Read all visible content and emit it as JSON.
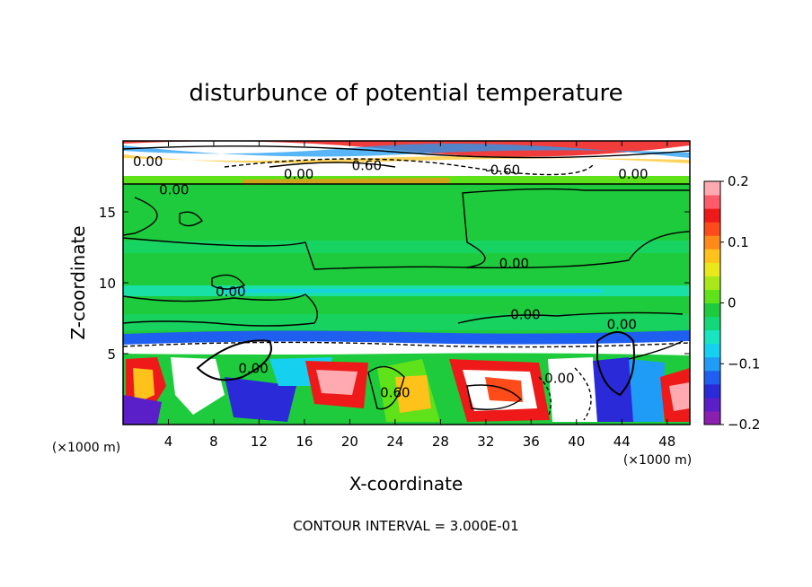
{
  "chart_data": {
    "type": "heatmap",
    "title": "disturbunce of potential temperature",
    "xlabel": "X-coordinate",
    "ylabel": "Z-coordinate",
    "x_unit": "(×1000 m)",
    "y_unit": "(×1000 m)",
    "xlim": [
      0,
      50
    ],
    "ylim": [
      0,
      20
    ],
    "x_ticks": [
      "4",
      "8",
      "12",
      "16",
      "20",
      "24",
      "28",
      "32",
      "36",
      "40",
      "44",
      "48"
    ],
    "y_ticks": [
      "5",
      "10",
      "15"
    ],
    "colorbar": {
      "range": [
        -0.2,
        0.2
      ],
      "tick_labels": [
        "0.2",
        "0.1",
        "0",
        "−0.1",
        "−0.2"
      ],
      "colors": [
        "#8b1fb0",
        "#5a1fc8",
        "#2a2ad8",
        "#1f5ff0",
        "#1f9cf5",
        "#16d0f0",
        "#18e6c0",
        "#12d87a",
        "#1ecb3c",
        "#5fe21a",
        "#a8e818",
        "#e8e81a",
        "#ffc21a",
        "#ff8a1a",
        "#ff4a1a",
        "#ee1a1a",
        "#ff5a6a",
        "#ffaab0"
      ]
    },
    "contour_labels": [
      {
        "text": "0.00",
        "x": 2.2,
        "y": 18.3
      },
      {
        "text": "0.00",
        "x": 15.5,
        "y": 17.4
      },
      {
        "text": "0.60",
        "x": 21.5,
        "y": 18.0
      },
      {
        "text": "-0.60",
        "x": 33.5,
        "y": 17.7
      },
      {
        "text": "0.00",
        "x": 45.0,
        "y": 17.4
      },
      {
        "text": "0.00",
        "x": 4.5,
        "y": 16.3
      },
      {
        "text": "0.00",
        "x": 34.5,
        "y": 11.1
      },
      {
        "text": "0.00",
        "x": 9.5,
        "y": 9.1
      },
      {
        "text": "0.00",
        "x": 35.5,
        "y": 7.5
      },
      {
        "text": "0.00",
        "x": 44.0,
        "y": 6.8
      },
      {
        "text": "0.00",
        "x": 11.5,
        "y": 3.7
      },
      {
        "text": "0.60",
        "x": 24.0,
        "y": 2.0
      },
      {
        "text": "0.00",
        "x": 38.5,
        "y": 3.0
      }
    ],
    "contour_interval_note": "CONTOUR INTERVAL = 3.000E-01"
  }
}
